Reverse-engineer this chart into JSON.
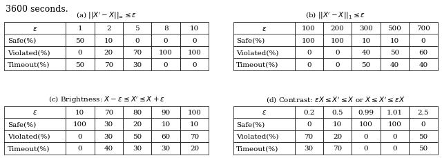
{
  "header_text": "3600 seconds.",
  "tables": [
    {
      "title": "(a) $||X^{\\prime} - X||_{\\infty} \\leq \\epsilon$",
      "col_header": [
        "$\\epsilon$",
        "1",
        "2",
        "5",
        "8",
        "10"
      ],
      "rows": [
        [
          "Safe(%)",
          "50",
          "10",
          "0",
          "0",
          "0"
        ],
        [
          "Violated(%)",
          "0",
          "20",
          "70",
          "100",
          "100"
        ],
        [
          "Timeout(%)",
          "50",
          "70",
          "30",
          "0",
          "0"
        ]
      ]
    },
    {
      "title": "(b) $||X^{\\prime} - X||_{1} \\leq \\epsilon$",
      "col_header": [
        "$\\epsilon$",
        "100",
        "200",
        "300",
        "500",
        "700"
      ],
      "rows": [
        [
          "Safe(%)",
          "100",
          "100",
          "10",
          "10",
          "0"
        ],
        [
          "Violated(%)",
          "0",
          "0",
          "40",
          "50",
          "60"
        ],
        [
          "Timeout(%)",
          "0",
          "0",
          "50",
          "40",
          "40"
        ]
      ]
    },
    {
      "title": "(c) Brightness: $X - \\epsilon \\leq X^{\\prime} \\leq X + \\epsilon$",
      "col_header": [
        "$\\epsilon$",
        "10",
        "70",
        "80",
        "90",
        "100"
      ],
      "rows": [
        [
          "Safe(%)",
          "100",
          "30",
          "20",
          "10",
          "10"
        ],
        [
          "Violated(%)",
          "0",
          "30",
          "50",
          "60",
          "70"
        ],
        [
          "Timeout(%)",
          "0",
          "40",
          "30",
          "30",
          "20"
        ]
      ]
    },
    {
      "title": "(d) Contrast: $\\epsilon X \\leq X^{\\prime} \\leq X$ or $X \\leq X^{\\prime} \\leq \\epsilon X$",
      "col_header": [
        "$\\epsilon$",
        "0.2",
        "0.5",
        "0.99",
        "1.01",
        "2.5"
      ],
      "rows": [
        [
          "Safe(%)",
          "0",
          "10",
          "100",
          "100",
          "0"
        ],
        [
          "Violated(%)",
          "70",
          "20",
          "0",
          "0",
          "50"
        ],
        [
          "Timeout(%)",
          "30",
          "70",
          "0",
          "0",
          "50"
        ]
      ]
    }
  ],
  "title_fontsize": 7.5,
  "data_fontsize": 7.5,
  "header_fontsize": 9
}
